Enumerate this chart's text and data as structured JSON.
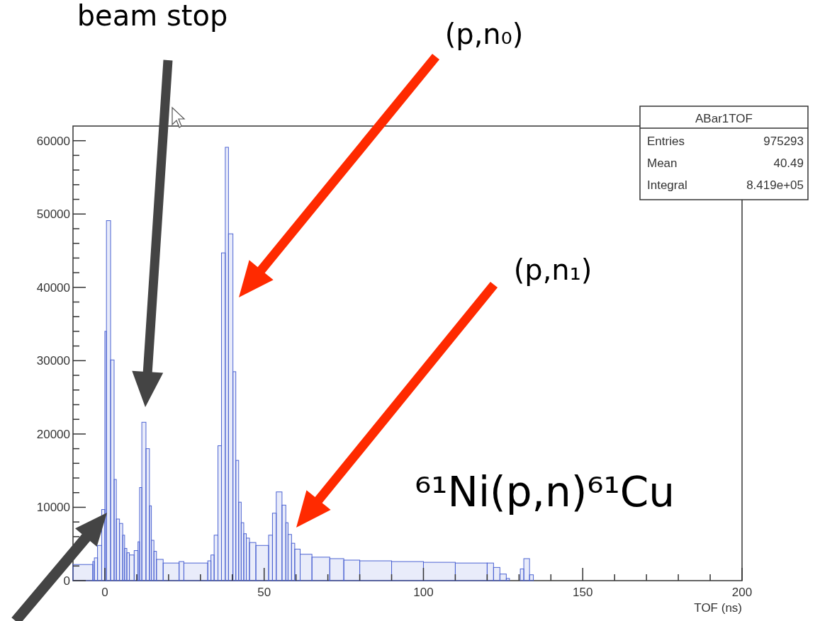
{
  "chart_data": {
    "type": "histogram",
    "title": "⁶¹Ni(p,n)⁶¹Cu",
    "xlabel": "TOF (ns)",
    "bins": [
      -10,
      -3.8,
      -3.3,
      -2.3,
      -1,
      0,
      0.5,
      1.8,
      2.9,
      3.6,
      4.6,
      5.6,
      6.2,
      6.9,
      7.7,
      9.2,
      10.4,
      10.9,
      11.6,
      12.9,
      14,
      14.6,
      15.4,
      16.2,
      18.3,
      23.3,
      24.8,
      32.3,
      33.3,
      34.3,
      35.5,
      36.6,
      37.8,
      38.8,
      40.2,
      41.1,
      42,
      42.8,
      43.6,
      44.4,
      45.4,
      47.4,
      51.4,
      52.6,
      53.8,
      55.6,
      56.8,
      57.5,
      58.6,
      59.6,
      61.3,
      65,
      70.6,
      75,
      80,
      90,
      100,
      110,
      120,
      122,
      124,
      126,
      127,
      130.4,
      131.5,
      133.3,
      134.5
    ],
    "values": [
      2200,
      2600,
      3100,
      4800,
      9700,
      34000,
      49100,
      30100,
      13800,
      8400,
      7800,
      6200,
      4400,
      3800,
      3500,
      4100,
      5300,
      12700,
      21600,
      18000,
      10200,
      5500,
      4000,
      2900,
      2400,
      2600,
      2400,
      2700,
      3500,
      6200,
      18400,
      44700,
      59100,
      47300,
      28500,
      16400,
      10700,
      7900,
      6400,
      5800,
      5200,
      4800,
      6200,
      9200,
      12100,
      10300,
      7900,
      6300,
      5100,
      4300,
      3600,
      3200,
      3000,
      2800,
      2700,
      2600,
      2500,
      2400,
      2400,
      1800,
      900,
      300,
      0,
      1600,
      3000,
      800
    ],
    "color": "#4c63d2",
    "xlim": [
      -10,
      200
    ],
    "ylim": [
      0,
      62000
    ],
    "xticks": [
      0,
      {
        "value": 10,
        "label": null
      },
      {
        "value": 20,
        "label": null
      },
      {
        "value": 30,
        "label": null
      },
      {
        "value": 40,
        "label": null
      },
      50,
      {
        "value": 60,
        "label": null
      },
      {
        "value": 70,
        "label": null
      },
      {
        "value": 80,
        "label": null
      },
      {
        "value": 90,
        "label": null
      },
      100,
      {
        "value": 110,
        "label": null
      },
      {
        "value": 120,
        "label": null
      },
      {
        "value": 130,
        "label": null
      },
      {
        "value": 140,
        "label": null
      },
      150,
      {
        "value": 160,
        "label": null
      },
      {
        "value": 170,
        "label": null
      },
      {
        "value": 180,
        "label": null
      },
      {
        "value": 190,
        "label": null
      },
      200
    ],
    "yticks": [
      0,
      {
        "value": 2000,
        "label": null
      },
      {
        "value": 4000,
        "label": null
      },
      {
        "value": 6000,
        "label": null
      },
      {
        "value": 8000,
        "label": null
      },
      10000,
      {
        "value": 12000,
        "label": null
      },
      {
        "value": 14000,
        "label": null
      },
      {
        "value": 16000,
        "label": null
      },
      {
        "value": 18000,
        "label": null
      },
      20000,
      {
        "value": 22000,
        "label": null
      },
      {
        "value": 24000,
        "label": null
      },
      {
        "value": 26000,
        "label": null
      },
      {
        "value": 28000,
        "label": null
      },
      30000,
      {
        "value": 32000,
        "label": null
      },
      {
        "value": 34000,
        "label": null
      },
      {
        "value": 36000,
        "label": null
      },
      {
        "value": 38000,
        "label": null
      },
      40000,
      {
        "value": 42000,
        "label": null
      },
      {
        "value": 44000,
        "label": null
      },
      {
        "value": 46000,
        "label": null
      },
      {
        "value": 48000,
        "label": null
      },
      50000,
      {
        "value": 52000,
        "label": null
      },
      {
        "value": 54000,
        "label": null
      },
      {
        "value": 56000,
        "label": null
      },
      {
        "value": 58000,
        "label": null
      },
      60000
    ],
    "annotations": [
      "beam stop",
      "(p,n₀)",
      "(p,n₁)",
      "ABar1TOF",
      "Entries",
      "975293",
      "Mean",
      "40.49",
      "Integral",
      "8.419e+05"
    ]
  }
}
